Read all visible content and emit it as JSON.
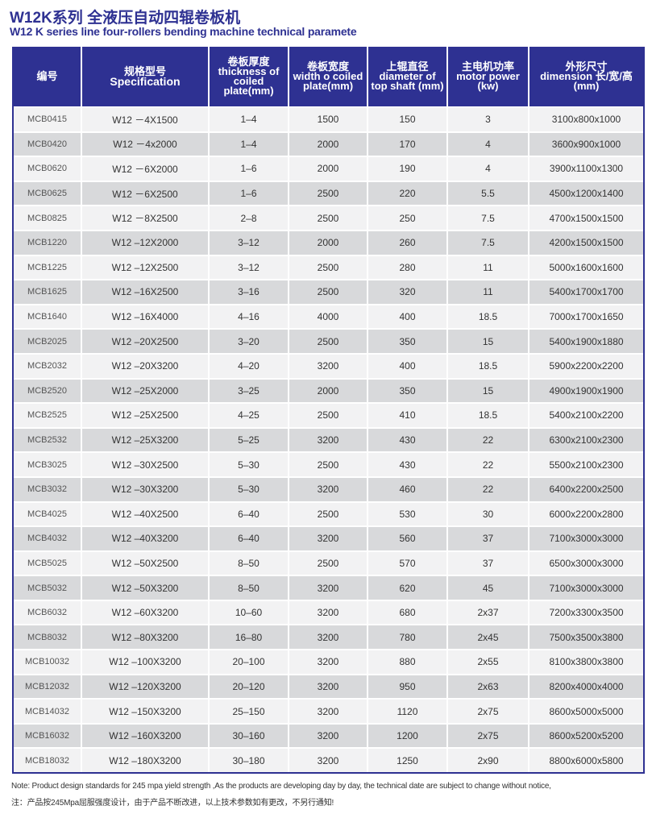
{
  "title_cn": "W12K系列 全液压自动四辊卷板机",
  "title_en": "W12 K  series line  four-rollers bending machine technical paramete",
  "headers": [
    {
      "cn": "编号",
      "en": ""
    },
    {
      "cn": "规格型号",
      "en": "Specification"
    },
    {
      "cn": "卷板厚度",
      "en": "thickness of coiled plate(mm)"
    },
    {
      "cn": "卷板宽度",
      "en": "width o coiled plate(mm)"
    },
    {
      "cn": "上辊直径",
      "en": "diameter of top shaft (mm)"
    },
    {
      "cn": "主电机功率",
      "en": "motor power (kw)"
    },
    {
      "cn": "外形尺寸",
      "en": "dimension 长/宽/高 (mm)"
    }
  ],
  "rows": [
    [
      "MCB0415",
      "W12  －4X1500",
      "1–4",
      "1500",
      "150",
      "3",
      "3100x800x1000"
    ],
    [
      "MCB0420",
      "W12  －4x2000",
      "1–4",
      "2000",
      "170",
      "4",
      "3600x900x1000"
    ],
    [
      "MCB0620",
      "W12  －6X2000",
      "1–6",
      "2000",
      "190",
      "4",
      "3900x1100x1300"
    ],
    [
      "MCB0625",
      "W12  －6X2500",
      "1–6",
      "2500",
      "220",
      "5.5",
      "4500x1200x1400"
    ],
    [
      "MCB0825",
      "W12  －8X2500",
      "2–8",
      "2500",
      "250",
      "7.5",
      "4700x1500x1500"
    ],
    [
      "MCB1220",
      "W12  –12X2000",
      "3–12",
      "2000",
      "260",
      "7.5",
      "4200x1500x1500"
    ],
    [
      "MCB1225",
      "W12  –12X2500",
      "3–12",
      "2500",
      "280",
      "11",
      "5000x1600x1600"
    ],
    [
      "MCB1625",
      "W12  –16X2500",
      "3–16",
      "2500",
      "320",
      "11",
      "5400x1700x1700"
    ],
    [
      "MCB1640",
      "W12  –16X4000",
      "4–16",
      "4000",
      "400",
      "18.5",
      "7000x1700x1650"
    ],
    [
      "MCB2025",
      "W12  –20X2500",
      "3–20",
      "2500",
      "350",
      "15",
      "5400x1900x1880"
    ],
    [
      "MCB2032",
      "W12  –20X3200",
      "4–20",
      "3200",
      "400",
      "18.5",
      "5900x2200x2200"
    ],
    [
      "MCB2520",
      "W12  –25X2000",
      "3–25",
      "2000",
      "350",
      "15",
      "4900x1900x1900"
    ],
    [
      "MCB2525",
      "W12  –25X2500",
      "4–25",
      "2500",
      "410",
      "18.5",
      "5400x2100x2200"
    ],
    [
      "MCB2532",
      "W12  –25X3200",
      "5–25",
      "3200",
      "430",
      "22",
      "6300x2100x2300"
    ],
    [
      "MCB3025",
      "W12  –30X2500",
      "5–30",
      "2500",
      "430",
      "22",
      "5500x2100x2300"
    ],
    [
      "MCB3032",
      "W12  –30X3200",
      "5–30",
      "3200",
      "460",
      "22",
      "6400x2200x2500"
    ],
    [
      "MCB4025",
      "W12  –40X2500",
      "6–40",
      "2500",
      "530",
      "30",
      "6000x2200x2800"
    ],
    [
      "MCB4032",
      "W12  –40X3200",
      "6–40",
      "3200",
      "560",
      "37",
      "7100x3000x3000"
    ],
    [
      "MCB5025",
      "W12  –50X2500",
      "8–50",
      "2500",
      "570",
      "37",
      "6500x3000x3000"
    ],
    [
      "MCB5032",
      "W12  –50X3200",
      "8–50",
      "3200",
      "620",
      "45",
      "7100x3000x3000"
    ],
    [
      "MCB6032",
      "W12  –60X3200",
      "10–60",
      "3200",
      "680",
      "2x37",
      "7200x3300x3500"
    ],
    [
      "MCB8032",
      "W12  –80X3200",
      "16–80",
      "3200",
      "780",
      "2x45",
      "7500x3500x3800"
    ],
    [
      "MCB10032",
      "W12  –100X3200",
      "20–100",
      "3200",
      "880",
      "2x55",
      "8100x3800x3800"
    ],
    [
      "MCB12032",
      "W12  –120X3200",
      "20–120",
      "3200",
      "950",
      "2x63",
      "8200x4000x4000"
    ],
    [
      "MCB14032",
      "W12  –150X3200",
      "25–150",
      "3200",
      "1120",
      "2x75",
      "8600x5000x5000"
    ],
    [
      "MCB16032",
      "W12  –160X3200",
      "30–160",
      "3200",
      "1200",
      "2x75",
      "8600x5200x5200"
    ],
    [
      "MCB18032",
      "W12  –180X3200",
      "30–180",
      "3200",
      "1250",
      "2x90",
      "8800x6000x5800"
    ]
  ],
  "note_en": "Note: Product design standards for 245 mpa yield strength ,As the products are developing day by day, the technical date are subject to change without notice,",
  "note_cn": "注：产品按245Mpa屈服强度设计，由于产品不断改进，以上技术参数如有更改，不另行通知!",
  "colors": {
    "header": "#2e3192",
    "row_light": "#f2f2f3",
    "row_dark": "#d8d9db"
  }
}
